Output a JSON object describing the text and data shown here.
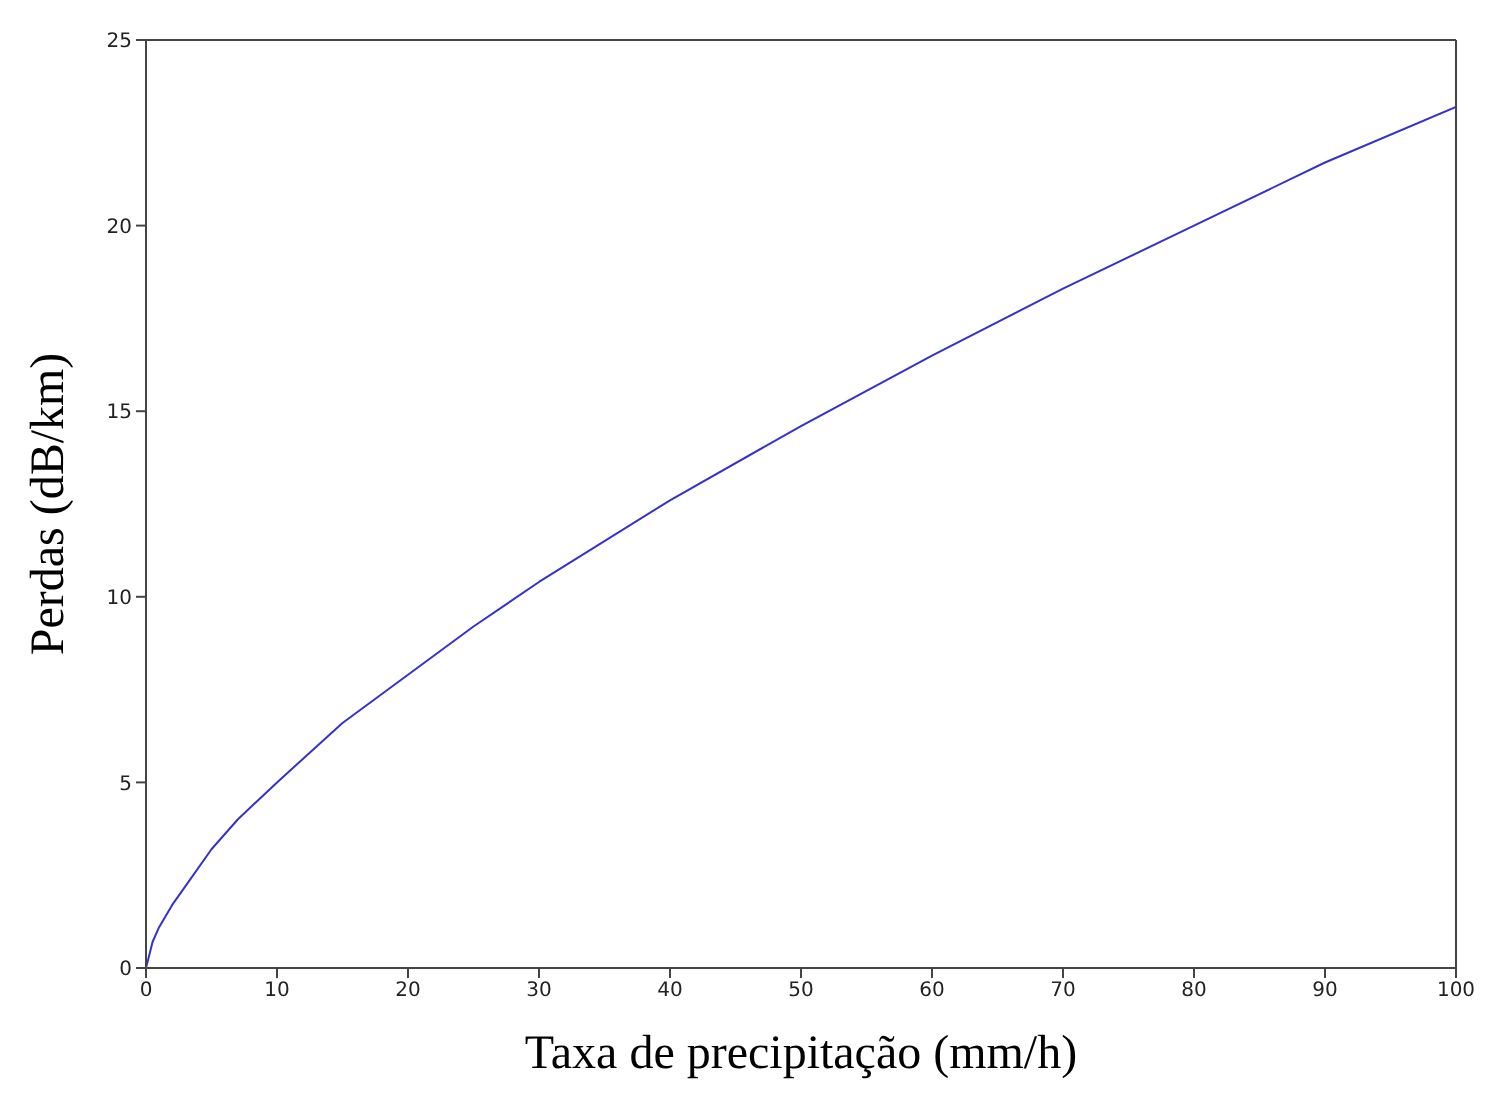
{
  "chart_data": {
    "type": "line",
    "xlabel": "Taxa de precipitação (mm/h)",
    "ylabel": "Perdas (dB/km)",
    "xlim": [
      0,
      100
    ],
    "xticks": [
      0,
      10,
      20,
      30,
      40,
      50,
      60,
      70,
      80,
      90,
      100
    ],
    "ylim": [
      0,
      25
    ],
    "yticks": [
      0,
      5,
      10,
      15,
      20,
      25
    ],
    "marker": "none",
    "line_style": "solid",
    "x": [
      0,
      0.5,
      1,
      2,
      3,
      5,
      7,
      10,
      15,
      20,
      25,
      30,
      40,
      50,
      60,
      70,
      80,
      90,
      100
    ],
    "series": [
      {
        "color": "#3333cc",
        "values": [
          0,
          0.7,
          1.1,
          1.7,
          2.2,
          3.2,
          4.0,
          5.0,
          6.6,
          7.9,
          9.2,
          10.4,
          12.6,
          14.6,
          16.5,
          18.3,
          20.0,
          21.7,
          23.2
        ]
      }
    ]
  }
}
